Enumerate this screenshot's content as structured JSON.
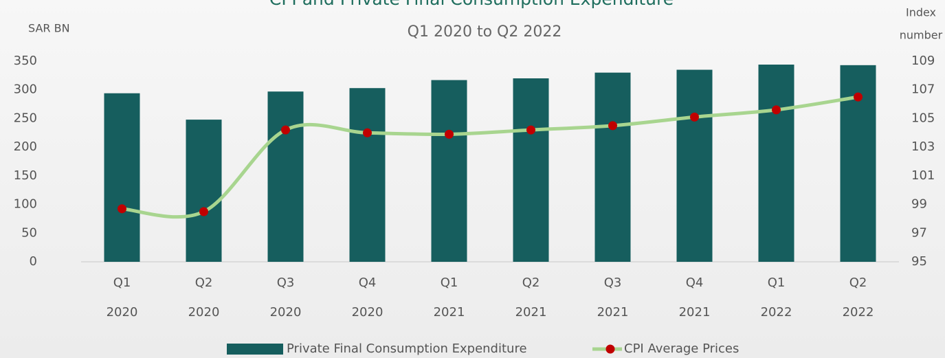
{
  "chart_data": {
    "type": "bar-line",
    "title": "CPI and Private Final Consumption Expenditure",
    "subtitle": "Q1 2020 to Q2 2022",
    "y_label": "SAR BN",
    "y2_label": [
      "Index",
      "number"
    ],
    "categories": [
      [
        "Q1",
        "2020"
      ],
      [
        "Q2",
        "2020"
      ],
      [
        "Q3",
        "2020"
      ],
      [
        "Q4",
        "2020"
      ],
      [
        "Q1",
        "2021"
      ],
      [
        "Q2",
        "2021"
      ],
      [
        "Q3",
        "2021"
      ],
      [
        "Q4",
        "2021"
      ],
      [
        "Q1",
        "2022"
      ],
      [
        "Q2",
        "2022"
      ]
    ],
    "series": [
      {
        "name": "Private Final Consumption Expenditure",
        "type": "bar",
        "color": "#165e5e",
        "axis": "y",
        "values": [
          294,
          248,
          297,
          303,
          317,
          320,
          330,
          335,
          344,
          343
        ]
      },
      {
        "name": "CPI Average Prices",
        "type": "line",
        "color": "#a8d58f",
        "marker_color": "#c00000",
        "axis": "y2",
        "values": [
          98.7,
          98.5,
          104.2,
          104.0,
          103.9,
          104.2,
          104.5,
          105.1,
          105.6,
          106.5
        ]
      }
    ],
    "ylim": [
      0,
      350
    ],
    "yticks": [
      0,
      50,
      100,
      150,
      200,
      250,
      300,
      350
    ],
    "y2lim": [
      95,
      109
    ],
    "y2ticks": [
      95,
      97,
      99,
      101,
      103,
      105,
      107,
      109
    ],
    "legend": "bottom"
  }
}
